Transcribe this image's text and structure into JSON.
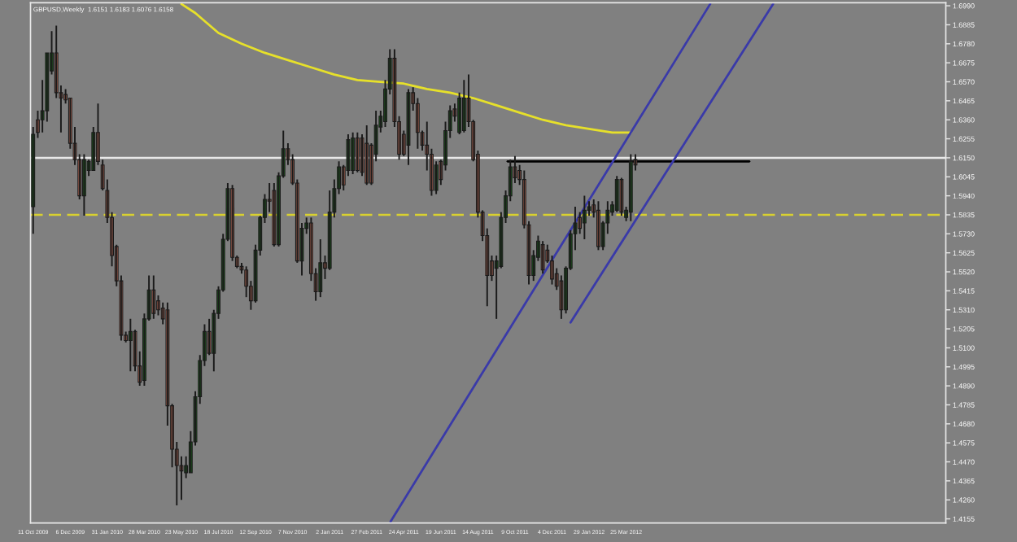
{
  "chart_data": {
    "type": "candlestick",
    "title": "GBPUSD,Weekly  1.6151 1.6183 1.6076 1.6158",
    "x": [
      "2009-10-11",
      "2009-10-18",
      "2009-10-25",
      "2009-11-01",
      "2009-11-08",
      "2009-11-15",
      "2009-11-22",
      "2009-11-29",
      "2009-12-06",
      "2009-12-13",
      "2009-12-20",
      "2009-12-27",
      "2010-01-03",
      "2010-01-10",
      "2010-01-17",
      "2010-01-24",
      "2010-01-31",
      "2010-02-07",
      "2010-02-14",
      "2010-02-21",
      "2010-02-28",
      "2010-03-07",
      "2010-03-14",
      "2010-03-21",
      "2010-03-28",
      "2010-04-04",
      "2010-04-11",
      "2010-04-18",
      "2010-04-25",
      "2010-05-02",
      "2010-05-09",
      "2010-05-16",
      "2010-05-23",
      "2010-05-30",
      "2010-06-06",
      "2010-06-13",
      "2010-06-20",
      "2010-06-27",
      "2010-07-04",
      "2010-07-11",
      "2010-07-18",
      "2010-07-25",
      "2010-08-01",
      "2010-08-08",
      "2010-08-15",
      "2010-08-22",
      "2010-08-29",
      "2010-09-05",
      "2010-09-12",
      "2010-09-19",
      "2010-09-26",
      "2010-10-03",
      "2010-10-10",
      "2010-10-17",
      "2010-10-24",
      "2010-10-31",
      "2010-11-07",
      "2010-11-14",
      "2010-11-21",
      "2010-11-28",
      "2010-12-05",
      "2010-12-12",
      "2010-12-19",
      "2010-12-26",
      "2011-01-02",
      "2011-01-09",
      "2011-01-16",
      "2011-01-23",
      "2011-01-30",
      "2011-02-06",
      "2011-02-13",
      "2011-02-20",
      "2011-02-27",
      "2011-03-06",
      "2011-03-13",
      "2011-03-20",
      "2011-03-27",
      "2011-04-03",
      "2011-04-10",
      "2011-04-17",
      "2011-04-24",
      "2011-05-01",
      "2011-05-08",
      "2011-05-15",
      "2011-05-22",
      "2011-05-29",
      "2011-06-05",
      "2011-06-12",
      "2011-06-19",
      "2011-06-26",
      "2011-07-03",
      "2011-07-10",
      "2011-07-17",
      "2011-07-24",
      "2011-07-31",
      "2011-08-07",
      "2011-08-14",
      "2011-08-21",
      "2011-08-28",
      "2011-09-04",
      "2011-09-11",
      "2011-09-18",
      "2011-09-25",
      "2011-10-02",
      "2011-10-09",
      "2011-10-16",
      "2011-10-23",
      "2011-10-30",
      "2011-11-06",
      "2011-11-13",
      "2011-11-20",
      "2011-11-27",
      "2011-12-04",
      "2011-12-11",
      "2011-12-18",
      "2011-12-25",
      "2012-01-01",
      "2012-01-08",
      "2012-01-15",
      "2012-01-22",
      "2012-01-29",
      "2012-02-05",
      "2012-02-12",
      "2012-02-19",
      "2012-02-26",
      "2012-03-04",
      "2012-03-11",
      "2012-03-18",
      "2012-03-25",
      "2012-04-01",
      "2012-04-08"
    ],
    "ohlc": [
      [
        1.588,
        1.632,
        1.573,
        1.628
      ],
      [
        1.636,
        1.641,
        1.626,
        1.629
      ],
      [
        1.636,
        1.658,
        1.629,
        1.641
      ],
      [
        1.641,
        1.673,
        1.635,
        1.673
      ],
      [
        1.663,
        1.685,
        1.661,
        1.673
      ],
      [
        1.673,
        1.688,
        1.648,
        1.651
      ],
      [
        1.651,
        1.655,
        1.629,
        1.648
      ],
      [
        1.65,
        1.653,
        1.645,
        1.647
      ],
      [
        1.648,
        1.648,
        1.62,
        1.623
      ],
      [
        1.623,
        1.632,
        1.611,
        1.614
      ],
      [
        1.614,
        1.617,
        1.592,
        1.594
      ],
      [
        1.594,
        1.617,
        1.583,
        1.614
      ],
      [
        1.608,
        1.614,
        1.605,
        1.613
      ],
      [
        1.608,
        1.632,
        1.608,
        1.629
      ],
      [
        1.629,
        1.645,
        1.611,
        1.613
      ],
      [
        1.611,
        1.614,
        1.597,
        1.598
      ],
      [
        1.597,
        1.603,
        1.579,
        1.582
      ],
      [
        1.582,
        1.585,
        1.555,
        1.561
      ],
      [
        1.566,
        1.567,
        1.544,
        1.547
      ],
      [
        1.547,
        1.55,
        1.514,
        1.517
      ],
      [
        1.517,
        1.519,
        1.513,
        1.514
      ],
      [
        1.514,
        1.526,
        1.497,
        1.519
      ],
      [
        1.519,
        1.52,
        1.497,
        1.5
      ],
      [
        1.5,
        1.508,
        1.489,
        1.491
      ],
      [
        1.492,
        1.529,
        1.489,
        1.526
      ],
      [
        1.526,
        1.55,
        1.525,
        1.542
      ],
      [
        1.542,
        1.55,
        1.526,
        1.529
      ],
      [
        1.536,
        1.539,
        1.528,
        1.531
      ],
      [
        1.532,
        1.535,
        1.523,
        1.526
      ],
      [
        1.531,
        1.535,
        1.467,
        1.478
      ],
      [
        1.478,
        1.479,
        1.444,
        1.454
      ],
      [
        1.454,
        1.458,
        1.423,
        1.445
      ],
      [
        1.445,
        1.45,
        1.426,
        1.442
      ],
      [
        1.441,
        1.45,
        1.438,
        1.445
      ],
      [
        1.441,
        1.464,
        1.441,
        1.458
      ],
      [
        1.458,
        1.486,
        1.456,
        1.483
      ],
      [
        1.483,
        1.506,
        1.479,
        1.503
      ],
      [
        1.503,
        1.523,
        1.5,
        1.519
      ],
      [
        1.519,
        1.526,
        1.506,
        1.507
      ],
      [
        1.507,
        1.531,
        1.497,
        1.529
      ],
      [
        1.529,
        1.544,
        1.526,
        1.542
      ],
      [
        1.542,
        1.573,
        1.541,
        1.57
      ],
      [
        1.57,
        1.601,
        1.569,
        1.598
      ],
      [
        1.598,
        1.6,
        1.558,
        1.56
      ],
      [
        1.56,
        1.561,
        1.554,
        1.555
      ],
      [
        1.555,
        1.557,
        1.551,
        1.553
      ],
      [
        1.553,
        1.555,
        1.538,
        1.544
      ],
      [
        1.544,
        1.547,
        1.531,
        1.536
      ],
      [
        1.536,
        1.567,
        1.535,
        1.564
      ],
      [
        1.564,
        1.583,
        1.561,
        1.582
      ],
      [
        1.582,
        1.595,
        1.579,
        1.592
      ],
      [
        1.592,
        1.601,
        1.585,
        1.591
      ],
      [
        1.597,
        1.601,
        1.566,
        1.567
      ],
      [
        1.567,
        1.607,
        1.566,
        1.605
      ],
      [
        1.605,
        1.63,
        1.604,
        1.62
      ],
      [
        1.62,
        1.623,
        1.611,
        1.614
      ],
      [
        1.614,
        1.617,
        1.6,
        1.601
      ],
      [
        1.601,
        1.603,
        1.557,
        1.558
      ],
      [
        1.558,
        1.579,
        1.55,
        1.576
      ],
      [
        1.576,
        1.582,
        1.573,
        1.579
      ],
      [
        1.579,
        1.582,
        1.547,
        1.551
      ],
      [
        1.551,
        1.554,
        1.536,
        1.541
      ],
      [
        1.541,
        1.57,
        1.538,
        1.557
      ],
      [
        1.557,
        1.561,
        1.548,
        1.554
      ],
      [
        1.554,
        1.597,
        1.553,
        1.585
      ],
      [
        1.585,
        1.603,
        1.582,
        1.598
      ],
      [
        1.598,
        1.613,
        1.595,
        1.61
      ],
      [
        1.61,
        1.611,
        1.597,
        1.6
      ],
      [
        1.608,
        1.628,
        1.605,
        1.625
      ],
      [
        1.608,
        1.629,
        1.606,
        1.626
      ],
      [
        1.626,
        1.629,
        1.607,
        1.608
      ],
      [
        1.626,
        1.628,
        1.605,
        1.607
      ],
      [
        1.623,
        1.633,
        1.6,
        1.601
      ],
      [
        1.622,
        1.623,
        1.6,
        1.601
      ],
      [
        1.617,
        1.641,
        1.613,
        1.633
      ],
      [
        1.632,
        1.641,
        1.629,
        1.638
      ],
      [
        1.635,
        1.658,
        1.632,
        1.653
      ],
      [
        1.653,
        1.675,
        1.65,
        1.67
      ],
      [
        1.67,
        1.675,
        1.632,
        1.635
      ],
      [
        1.635,
        1.638,
        1.614,
        1.617
      ],
      [
        1.628,
        1.63,
        1.616,
        1.617
      ],
      [
        1.622,
        1.653,
        1.611,
        1.651
      ],
      [
        1.651,
        1.654,
        1.641,
        1.645
      ],
      [
        1.645,
        1.648,
        1.62,
        1.629
      ],
      [
        1.629,
        1.63,
        1.619,
        1.622
      ],
      [
        1.622,
        1.635,
        1.608,
        1.617
      ],
      [
        1.617,
        1.62,
        1.594,
        1.597
      ],
      [
        1.597,
        1.613,
        1.595,
        1.611
      ],
      [
        1.613,
        1.614,
        1.6,
        1.603
      ],
      [
        1.611,
        1.635,
        1.608,
        1.63
      ],
      [
        1.63,
        1.644,
        1.626,
        1.641
      ],
      [
        1.642,
        1.645,
        1.635,
        1.638
      ],
      [
        1.629,
        1.651,
        1.628,
        1.648
      ],
      [
        1.63,
        1.658,
        1.629,
        1.648
      ],
      [
        1.648,
        1.661,
        1.632,
        1.635
      ],
      [
        1.635,
        1.636,
        1.613,
        1.614
      ],
      [
        1.617,
        1.619,
        1.582,
        1.585
      ],
      [
        1.585,
        1.586,
        1.569,
        1.572
      ],
      [
        1.572,
        1.576,
        1.533,
        1.55
      ],
      [
        1.558,
        1.561,
        1.547,
        1.55
      ],
      [
        1.554,
        1.561,
        1.526,
        1.558
      ],
      [
        1.555,
        1.585,
        1.554,
        1.582
      ],
      [
        1.582,
        1.597,
        1.579,
        1.594
      ],
      [
        1.594,
        1.614,
        1.591,
        1.61
      ],
      [
        1.61,
        1.616,
        1.601,
        1.604
      ],
      [
        1.608,
        1.611,
        1.6,
        1.603
      ],
      [
        1.603,
        1.608,
        1.576,
        1.578
      ],
      [
        1.578,
        1.58,
        1.545,
        1.55
      ],
      [
        1.55,
        1.564,
        1.547,
        1.561
      ],
      [
        1.56,
        1.572,
        1.558,
        1.569
      ],
      [
        1.567,
        1.569,
        1.551,
        1.553
      ],
      [
        1.564,
        1.567,
        1.557,
        1.558
      ],
      [
        1.558,
        1.561,
        1.545,
        1.548
      ],
      [
        1.551,
        1.554,
        1.542,
        1.544
      ],
      [
        1.547,
        1.55,
        1.526,
        1.531
      ],
      [
        1.531,
        1.555,
        1.529,
        1.554
      ],
      [
        1.554,
        1.575,
        1.553,
        1.573
      ],
      [
        1.573,
        1.588,
        1.564,
        1.579
      ],
      [
        1.582,
        1.585,
        1.573,
        1.576
      ],
      [
        1.579,
        1.594,
        1.57,
        1.586
      ],
      [
        1.586,
        1.591,
        1.583,
        1.588
      ],
      [
        1.589,
        1.592,
        1.582,
        1.585
      ],
      [
        1.586,
        1.591,
        1.564,
        1.566
      ],
      [
        1.566,
        1.58,
        1.564,
        1.579
      ],
      [
        1.579,
        1.591,
        1.573,
        1.586
      ],
      [
        1.585,
        1.591,
        1.583,
        1.589
      ],
      [
        1.586,
        1.605,
        1.585,
        1.603
      ],
      [
        1.603,
        1.604,
        1.583,
        1.585
      ],
      [
        1.582,
        1.588,
        1.58,
        1.586
      ],
      [
        1.585,
        1.617,
        1.58,
        1.613
      ],
      [
        1.614,
        1.617,
        1.608,
        1.611
      ]
    ],
    "series": [
      {
        "type": "line",
        "color": "#e6e02a",
        "x": [
          "2010-05-23",
          "2010-06-13",
          "2010-07-18",
          "2010-08-22",
          "2010-09-26",
          "2010-10-31",
          "2010-12-05",
          "2011-01-09",
          "2011-02-13",
          "2011-03-20",
          "2011-04-24",
          "2011-05-29",
          "2011-07-03",
          "2011-08-07",
          "2011-09-11",
          "2011-10-16",
          "2011-11-20",
          "2011-12-25",
          "2012-01-29",
          "2012-03-04",
          "2012-04-01"
        ],
        "values": [
          1.7,
          1.695,
          1.684,
          1.678,
          1.673,
          1.669,
          1.665,
          1.661,
          1.658,
          1.657,
          1.656,
          1.653,
          1.651,
          1.648,
          1.644,
          1.64,
          1.636,
          1.633,
          1.631,
          1.629,
          1.629
        ]
      },
      {
        "type": "line",
        "color": "#000000",
        "x": [
          "2011-09-28",
          "2012-09-27"
        ],
        "values": [
          1.613,
          1.613
        ]
      },
      {
        "type": "line",
        "color": "#3a3aa8",
        "x": [
          "2011-04-04",
          "2012-07-30"
        ],
        "values": [
          1.414,
          1.7
        ]
      },
      {
        "type": "line",
        "color": "#3a3aa8",
        "x": [
          "2012-01-01",
          "2012-11-02"
        ],
        "values": [
          1.524,
          1.7
        ]
      }
    ],
    "ref_lines": [
      {
        "axis": "y",
        "value": 1.615,
        "color": "#e8e8e8",
        "line_style": "solid"
      },
      {
        "axis": "y",
        "value": 1.5835,
        "color": "#d8d030",
        "line_style": "dashed"
      }
    ],
    "xlim": [
      "2009-10-07",
      "2013-07-21"
    ],
    "xticks": [
      {
        "value": "2009-10-11",
        "label": "11 Oct 2009"
      },
      {
        "value": "2009-12-06",
        "label": "6 Dec 2009"
      },
      {
        "value": "2010-01-31",
        "label": "31 Jan 2010"
      },
      {
        "value": "2010-03-28",
        "label": "28 Mar 2010"
      },
      {
        "value": "2010-05-23",
        "label": "23 May 2010"
      },
      {
        "value": "2010-07-18",
        "label": "18 Jul 2010"
      },
      {
        "value": "2010-09-12",
        "label": "12 Sep 2010"
      },
      {
        "value": "2010-11-07",
        "label": "7 Nov 2010"
      },
      {
        "value": "2011-01-02",
        "label": "2 Jan 2011"
      },
      {
        "value": "2011-02-27",
        "label": "27 Feb 2011"
      },
      {
        "value": "2011-04-24",
        "label": "24 Apr 2011"
      },
      {
        "value": "2011-06-19",
        "label": "19 Jun 2011"
      },
      {
        "value": "2011-08-14",
        "label": "14 Aug 2011"
      },
      {
        "value": "2011-10-09",
        "label": "9 Oct 2011"
      },
      {
        "value": "2011-12-04",
        "label": "4 Dec 2011"
      },
      {
        "value": "2012-01-29",
        "label": "29 Jan 2012"
      },
      {
        "value": "2012-03-25",
        "label": "25 Mar 2012"
      }
    ],
    "ylim": [
      1.4132,
      1.7007
    ],
    "yticks": [
      {
        "value": 1.699,
        "label": "1.6990"
      },
      1.6885,
      {
        "value": 1.678,
        "label": "1.6780"
      },
      1.6675,
      {
        "value": 1.657,
        "label": "1.6570"
      },
      1.6465,
      {
        "value": 1.636,
        "label": "1.6360"
      },
      1.6255,
      {
        "value": 1.615,
        "label": "1.6150"
      },
      1.6045,
      {
        "value": 1.594,
        "label": "1.5940"
      },
      1.5835,
      {
        "value": 1.573,
        "label": "1.5730"
      },
      1.5625,
      {
        "value": 1.552,
        "label": "1.5520"
      },
      1.5415,
      {
        "value": 1.531,
        "label": "1.5310"
      },
      1.5205,
      {
        "value": 1.51,
        "label": "1.5100"
      },
      1.4995,
      {
        "value": 1.489,
        "label": "1.4890"
      },
      1.4785,
      {
        "value": 1.468,
        "label": "1.4680"
      },
      1.4575,
      {
        "value": 1.447,
        "label": "1.4470"
      },
      1.4365,
      {
        "value": 1.426,
        "label": "1.4260"
      },
      1.4155
    ],
    "grid": false,
    "legend": false
  }
}
